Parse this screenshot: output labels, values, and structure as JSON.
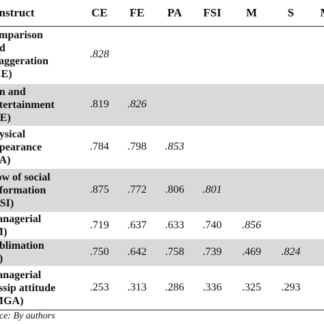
{
  "table": {
    "headers": [
      "onstruct",
      "CE",
      "FE",
      "PA",
      "FSI",
      "M",
      "S",
      "M"
    ],
    "rows": [
      {
        "construct": "omparison\nnd\nxaggeration\nCE)",
        "values": [
          ".828",
          "",
          "",
          "",
          "",
          "",
          ""
        ],
        "diagonal_index": 0
      },
      {
        "construct": "un and\nntertainment\nFE)",
        "values": [
          ".819",
          ".826",
          "",
          "",
          "",
          "",
          ""
        ],
        "diagonal_index": 1
      },
      {
        "construct": "hysical\nppearance\nPA)",
        "values": [
          ".784",
          ".798",
          ".853",
          "",
          "",
          "",
          ""
        ],
        "diagonal_index": 2
      },
      {
        "construct": "low of social\nnformation\nFSI)",
        "values": [
          ".875",
          ".772",
          ".806",
          ".801",
          "",
          "",
          ""
        ],
        "diagonal_index": 3
      },
      {
        "construct": "Ianagerial\nM)",
        "values": [
          ".719",
          ".637",
          ".633",
          ".740",
          ".856",
          "",
          ""
        ],
        "diagonal_index": 4
      },
      {
        "construct": "ublimation\nS)",
        "values": [
          ".750",
          ".642",
          ".758",
          ".739",
          ".469",
          ".824",
          ""
        ],
        "diagonal_index": 5
      },
      {
        "construct": "Ianagerial\nossip attitude\nMGA)",
        "values": [
          ".253",
          ".313",
          ".286",
          ".336",
          ".325",
          ".293",
          "."
        ],
        "diagonal_index": 6
      }
    ]
  },
  "source_note": "rce: By authors"
}
